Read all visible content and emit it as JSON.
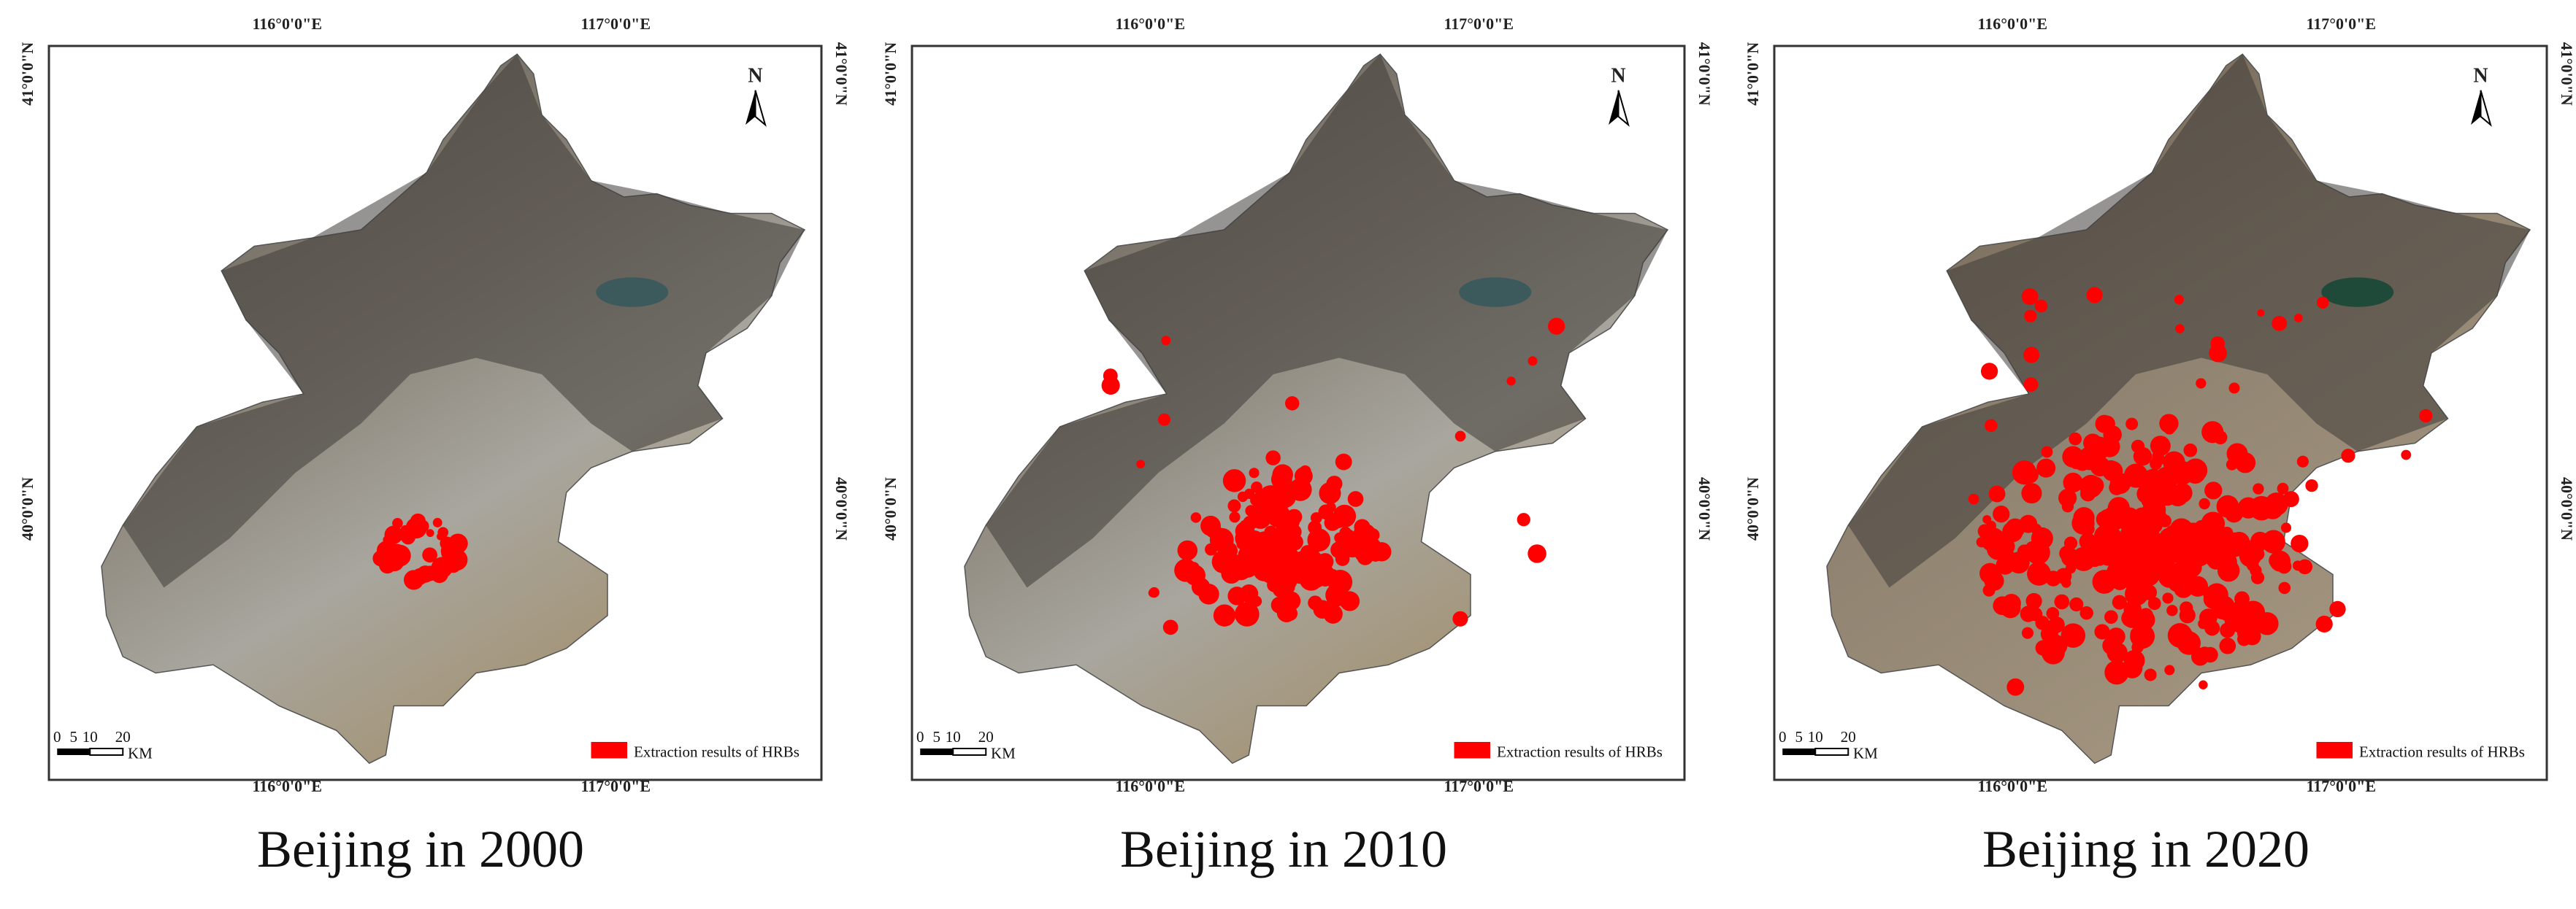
{
  "graticule": {
    "lon": [
      "116°0'0\"E",
      "117°0'0\"E"
    ],
    "lat": [
      "41°0'0\"N",
      "40°0'0\"N"
    ]
  },
  "north": "N",
  "scale_bar": {
    "ticks": [
      "0",
      "5",
      "10",
      "20"
    ],
    "unit": "KM"
  },
  "legend": "Extraction results of HRBs",
  "panels": [
    {
      "caption": "Beijing in 2000"
    },
    {
      "caption": "Beijing in 2010"
    },
    {
      "caption": "Beijing in 2020"
    }
  ]
}
